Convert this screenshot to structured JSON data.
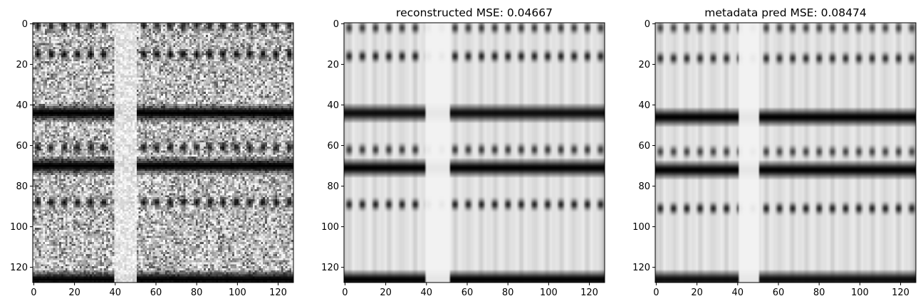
{
  "chart_data": [
    {
      "type": "heatmap",
      "title": "",
      "colormap": "gray",
      "image_size": [
        128,
        128
      ],
      "xlim": [
        0,
        127
      ],
      "ylim": [
        127,
        0
      ],
      "xticks": [
        0,
        20,
        40,
        60,
        80,
        100,
        120
      ],
      "yticks": [
        0,
        20,
        40,
        60,
        80,
        100,
        120
      ],
      "noise": "heavy",
      "dark_rows": [
        {
          "row": 1,
          "intensity": 0.8,
          "dotted": true
        },
        {
          "row": 15,
          "intensity": 0.9,
          "dotted": true
        },
        {
          "row": 44,
          "intensity": 1.0,
          "dotted": false
        },
        {
          "row": 61,
          "intensity": 0.8,
          "dotted": true
        },
        {
          "row": 70,
          "intensity": 1.0,
          "dotted": false
        },
        {
          "row": 88,
          "intensity": 0.85,
          "dotted": true
        },
        {
          "row": 126,
          "intensity": 1.0,
          "dotted": false
        }
      ],
      "gap_columns": [
        40,
        50
      ]
    },
    {
      "type": "heatmap",
      "title": "reconstructed MSE: 0.04667",
      "colormap": "gray",
      "image_size": [
        128,
        128
      ],
      "xlim": [
        0,
        127
      ],
      "ylim": [
        127,
        0
      ],
      "xticks": [
        0,
        20,
        40,
        60,
        80,
        100,
        120
      ],
      "yticks": [
        0,
        20,
        40,
        60,
        80,
        100,
        120
      ],
      "noise": "none",
      "dark_rows": [
        {
          "row": 2,
          "intensity": 0.7,
          "dotted": true
        },
        {
          "row": 16,
          "intensity": 0.8,
          "dotted": true
        },
        {
          "row": 44,
          "intensity": 0.95,
          "dotted": false
        },
        {
          "row": 62,
          "intensity": 0.7,
          "dotted": true
        },
        {
          "row": 71,
          "intensity": 1.0,
          "dotted": false
        },
        {
          "row": 89,
          "intensity": 0.8,
          "dotted": true
        },
        {
          "row": 126,
          "intensity": 1.0,
          "dotted": false
        }
      ],
      "gap_columns": [
        40,
        51
      ]
    },
    {
      "type": "heatmap",
      "title": "metadata pred MSE: 0.08474",
      "colormap": "gray",
      "image_size": [
        128,
        128
      ],
      "xlim": [
        0,
        127
      ],
      "ylim": [
        127,
        0
      ],
      "xticks": [
        0,
        20,
        40,
        60,
        80,
        100,
        120
      ],
      "yticks": [
        0,
        20,
        40,
        60,
        80,
        100,
        120
      ],
      "noise": "none",
      "dark_rows": [
        {
          "row": 2,
          "intensity": 0.65,
          "dotted": true
        },
        {
          "row": 17,
          "intensity": 0.75,
          "dotted": true
        },
        {
          "row": 46,
          "intensity": 1.0,
          "dotted": false
        },
        {
          "row": 63,
          "intensity": 0.65,
          "dotted": true
        },
        {
          "row": 72,
          "intensity": 1.0,
          "dotted": false
        },
        {
          "row": 91,
          "intensity": 0.8,
          "dotted": true
        },
        {
          "row": 126,
          "intensity": 0.95,
          "dotted": false
        }
      ],
      "gap_columns": [
        41,
        50
      ]
    }
  ]
}
